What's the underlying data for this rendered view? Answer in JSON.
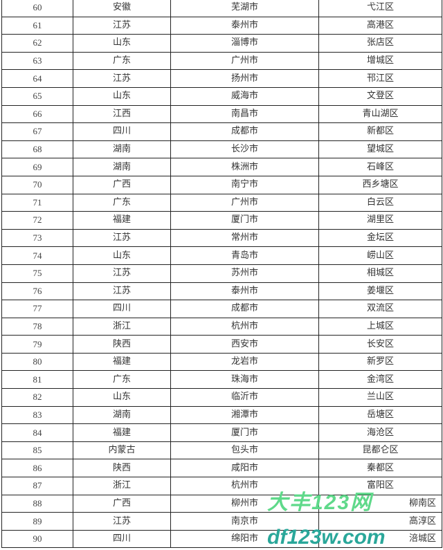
{
  "rows": [
    [
      "60",
      "安徽",
      "芜湖市",
      "弋江区"
    ],
    [
      "61",
      "江苏",
      "泰州市",
      "高港区"
    ],
    [
      "62",
      "山东",
      "淄博市",
      "张店区"
    ],
    [
      "63",
      "广东",
      "广州市",
      "增城区"
    ],
    [
      "64",
      "江苏",
      "扬州市",
      "邗江区"
    ],
    [
      "65",
      "山东",
      "威海市",
      "文登区"
    ],
    [
      "66",
      "江西",
      "南昌市",
      "青山湖区"
    ],
    [
      "67",
      "四川",
      "成都市",
      "新都区"
    ],
    [
      "68",
      "湖南",
      "长沙市",
      "望城区"
    ],
    [
      "69",
      "湖南",
      "株洲市",
      "石峰区"
    ],
    [
      "70",
      "广西",
      "南宁市",
      "西乡塘区"
    ],
    [
      "71",
      "广东",
      "广州市",
      "白云区"
    ],
    [
      "72",
      "福建",
      "厦门市",
      "湖里区"
    ],
    [
      "73",
      "江苏",
      "常州市",
      "金坛区"
    ],
    [
      "74",
      "山东",
      "青岛市",
      "崂山区"
    ],
    [
      "75",
      "江苏",
      "苏州市",
      "相城区"
    ],
    [
      "76",
      "江苏",
      "泰州市",
      "姜堰区"
    ],
    [
      "77",
      "四川",
      "成都市",
      "双流区"
    ],
    [
      "78",
      "浙江",
      "杭州市",
      "上城区"
    ],
    [
      "79",
      "陕西",
      "西安市",
      "长安区"
    ],
    [
      "80",
      "福建",
      "龙岩市",
      "新罗区"
    ],
    [
      "81",
      "广东",
      "珠海市",
      "金湾区"
    ],
    [
      "82",
      "山东",
      "临沂市",
      "兰山区"
    ],
    [
      "83",
      "湖南",
      "湘潭市",
      "岳塘区"
    ],
    [
      "84",
      "福建",
      "厦门市",
      "海沧区"
    ],
    [
      "85",
      "内蒙古",
      "包头市",
      "昆都仑区"
    ],
    [
      "86",
      "陕西",
      "咸阳市",
      "秦都区"
    ],
    [
      "87",
      "浙江",
      "杭州市",
      "富阳区"
    ],
    [
      "88",
      "广西",
      "柳州市",
      "柳南区"
    ],
    [
      "89",
      "江苏",
      "南京市",
      "高淳区"
    ],
    [
      "90",
      "四川",
      "绵阳市",
      "涪城区"
    ]
  ],
  "watermark": {
    "line1": "大丰123网",
    "line2": "df123w.com"
  }
}
